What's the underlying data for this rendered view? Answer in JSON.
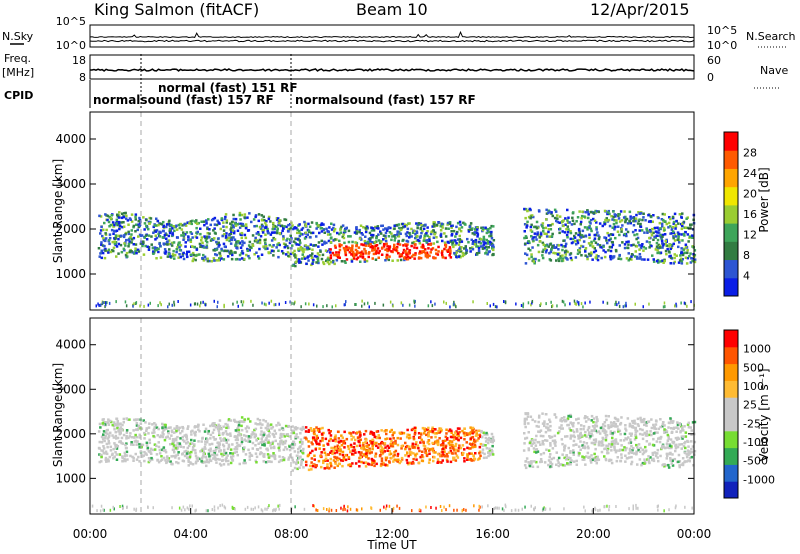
{
  "header": {
    "station": "King Salmon (fitACF)",
    "beam": "Beam 10",
    "date": "12/Apr/2015"
  },
  "left_labels": {
    "nsky": "N.Sky",
    "freq_line1": "Freq.",
    "freq_line2": "[MHz]",
    "cpid": "CPID"
  },
  "right_labels": {
    "nsearch": "N.Search",
    "nave": "Nave"
  },
  "cpid_segments": [
    {
      "label": "normalsound (fast) 157 RF"
    },
    {
      "label": "normal (fast) 151 RF"
    },
    {
      "label": "normalsound (fast) 157 RF"
    }
  ],
  "colors": {
    "power": [
      "#0a1ee6",
      "#2d55d2",
      "#327c42",
      "#3ea55a",
      "#9acd32",
      "#f0e600",
      "#ffa500",
      "#ff5a00",
      "#ff0000"
    ],
    "velocity": [
      "#ff0000",
      "#ff5500",
      "#ff9900",
      "#ffbb33",
      "#c8c8c8",
      "#c8c8c8",
      "#77dd33",
      "#33aa55",
      "#2266cc",
      "#1122bb"
    ]
  },
  "chart_data": [
    {
      "type": "line",
      "name": "noise-panel",
      "y_ticks_left": [
        "10^5",
        "10^0"
      ],
      "y_ticks_right": [
        "10^5",
        "10^0"
      ]
    },
    {
      "type": "line",
      "name": "freq-panel",
      "y_ticks_left": [
        "18",
        "8"
      ],
      "y_ticks_right": [
        "60",
        "0"
      ],
      "ylim_left": [
        8,
        18
      ],
      "ylim_right": [
        0,
        60
      ]
    },
    {
      "type": "heatmap",
      "name": "power-panel",
      "ylabel": "Slant Range [km]",
      "ylim": [
        200,
        4600
      ],
      "y_ticks": [
        1000,
        2000,
        3000,
        4000
      ],
      "colorbar_label": "Power [dB]",
      "colorbar_ticks": [
        "4",
        "8",
        "12",
        "16",
        "20",
        "24",
        "28"
      ]
    },
    {
      "type": "heatmap",
      "name": "velocity-panel",
      "ylabel": "Slant Range [km]",
      "ylim": [
        200,
        4600
      ],
      "y_ticks": [
        1000,
        2000,
        3000,
        4000
      ],
      "colorbar_label": "Velocity [m s⁻¹]",
      "colorbar_ticks": [
        "1000",
        "500",
        "100",
        "25",
        "-25",
        "-100",
        "-500",
        "-1000"
      ]
    }
  ],
  "x_axis": {
    "label": "Time UT",
    "ticks": [
      "00:00",
      "04:00",
      "08:00",
      "12:00",
      "16:00",
      "20:00",
      "00:00"
    ],
    "xlim_hours": [
      0,
      24
    ]
  }
}
